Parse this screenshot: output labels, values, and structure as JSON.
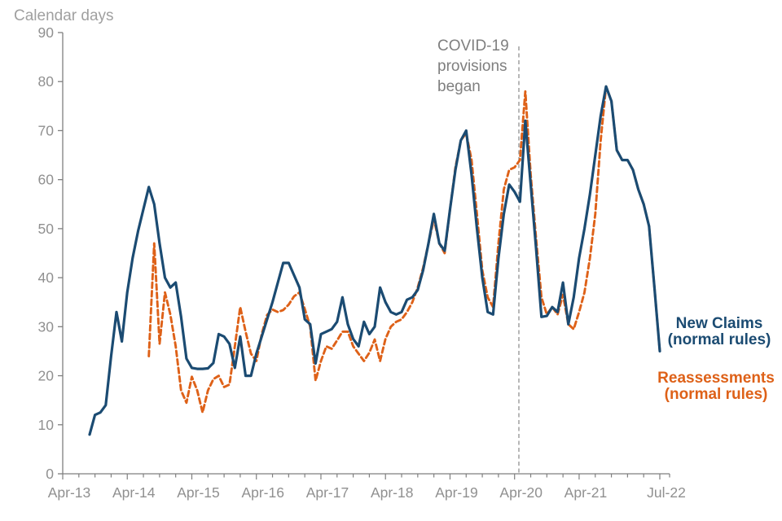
{
  "axis": {
    "title": "Calendar days"
  },
  "annotation": {
    "l1": "COVID-19",
    "l2": "provisions",
    "l3": "began"
  },
  "legend": {
    "new_claims_l1": "New Claims",
    "new_claims_l2": "(normal rules)",
    "reassessments_l1": "Reassessments",
    "reassessments_l2": "(normal rules)"
  },
  "colors": {
    "new_claims": "#1b4b72",
    "reassessments": "#de6118",
    "axis": "#7f7f7f",
    "tick_labels": "#909090",
    "annotation_text": "#7f7f7f",
    "covid_line": "#a6a6a6"
  },
  "chart_data": {
    "type": "line",
    "title": "",
    "ylabel": "Calendar days",
    "xlabel": "",
    "ylim": [
      0,
      90
    ],
    "yticks": [
      0,
      10,
      20,
      30,
      40,
      50,
      60,
      70,
      80,
      90
    ],
    "grid": false,
    "x_axis_unit": "months since Apr-13, quarterly minor ticks",
    "xtick_labels": [
      "Apr-13",
      "Apr-14",
      "Apr-15",
      "Apr-16",
      "Apr-17",
      "Apr-18",
      "Apr-19",
      "Apr-20",
      "Apr-21",
      "Jul-22"
    ],
    "xtick_months": [
      0,
      12,
      24,
      36,
      48,
      60,
      72,
      84,
      96,
      111
    ],
    "covid_line_month": 84.8,
    "annotation_text": "COVID-19 provisions began",
    "legend_position": "right-of-plot",
    "series": [
      {
        "name": "New Claims (normal rules)",
        "style": "solid",
        "start_label": "Sep-13",
        "start_month": 5,
        "values": [
          8,
          12,
          12.5,
          14,
          24,
          33,
          27,
          37,
          44,
          49.5,
          54,
          58.5,
          55,
          47,
          40,
          38,
          39,
          32,
          23.5,
          21.6,
          21.4,
          21.4,
          21.5,
          22.6,
          28.5,
          28,
          26.5,
          21.6,
          28,
          20,
          20,
          24.5,
          28,
          31.5,
          35,
          39,
          43,
          43,
          40.5,
          38,
          31.5,
          30.5,
          22.5,
          28.5,
          29,
          29.5,
          31,
          36,
          30.5,
          27.5,
          26,
          31,
          28.5,
          30,
          38,
          35,
          33,
          32.5,
          33,
          35.5,
          36,
          37.5,
          41.5,
          47,
          53,
          47,
          45.5,
          54,
          62,
          68,
          70,
          61,
          50,
          40,
          33,
          32.5,
          44,
          53,
          59,
          57.5,
          55.5,
          72,
          59,
          46,
          32,
          32.2,
          34,
          33,
          39,
          30.5,
          36,
          44,
          50,
          57,
          65,
          73,
          79,
          76,
          66,
          64,
          64,
          62,
          58,
          55,
          50.5,
          38,
          25
        ]
      },
      {
        "name": "Reassessments (normal rules)",
        "style": "dashed",
        "start_label": "Aug-14",
        "start_month": 16,
        "values": [
          24,
          47,
          26.5,
          37,
          32.5,
          26,
          17,
          14.5,
          19.8,
          17,
          12.5,
          17,
          19.3,
          20,
          17.7,
          18.2,
          26,
          34,
          29,
          24.5,
          23,
          28.5,
          32.4,
          33.5,
          33,
          33.4,
          34.5,
          36.2,
          37,
          33.6,
          30,
          19,
          23,
          26,
          25.5,
          27.2,
          29,
          29,
          26,
          24.5,
          23,
          24.7,
          27.4,
          23,
          27.5,
          30,
          31,
          31.5,
          33,
          35,
          38,
          42,
          47,
          52,
          47,
          45,
          54,
          62.5,
          68,
          69.5,
          64,
          53,
          41.5,
          36,
          34,
          47,
          58,
          62,
          62.5,
          64,
          78,
          61,
          48,
          36,
          32.5,
          34,
          32.5,
          36.5,
          30.5,
          29.5,
          33,
          37,
          44,
          53,
          68,
          79,
          76,
          66,
          64,
          64,
          62,
          58,
          55,
          50.5,
          38,
          25
        ]
      }
    ]
  }
}
